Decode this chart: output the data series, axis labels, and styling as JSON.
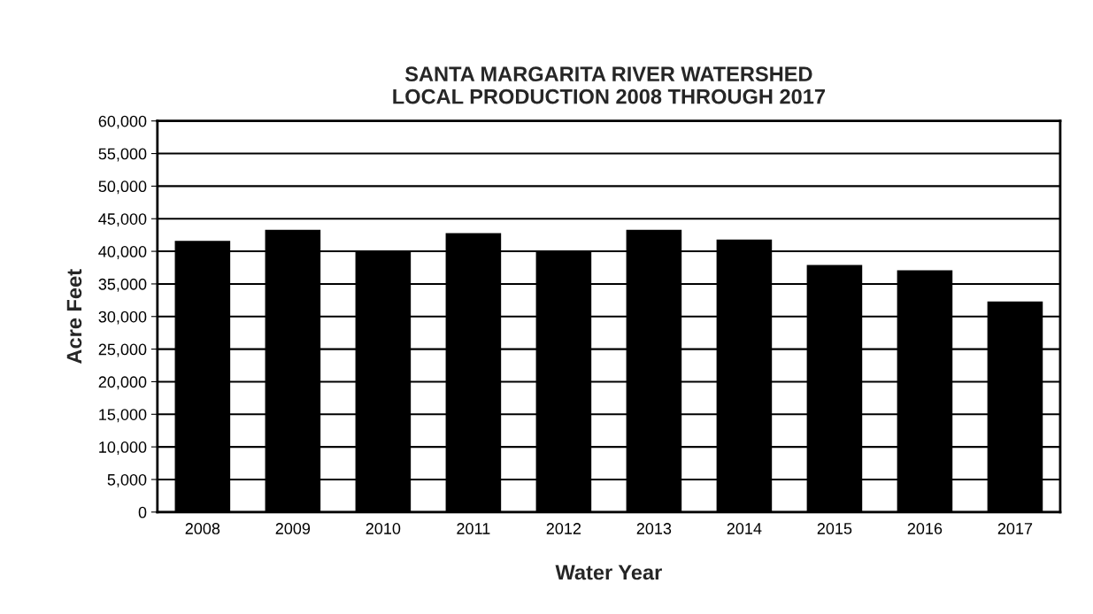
{
  "chart_data": {
    "type": "bar",
    "title": "SANTA MARGARITA RIVER WATERSHED\nLOCAL PRODUCTION 2008 THROUGH 2017",
    "xlabel": "Water Year",
    "ylabel": "Acre Feet",
    "categories": [
      "2008",
      "2009",
      "2010",
      "2011",
      "2012",
      "2013",
      "2014",
      "2015",
      "2016",
      "2017"
    ],
    "values": [
      41500,
      43200,
      40000,
      42700,
      39900,
      43200,
      41700,
      37800,
      37000,
      32200
    ],
    "color": "#000000",
    "ylim": [
      0,
      60000
    ],
    "yticks": [
      {
        "value": 0,
        "label": "0"
      },
      {
        "value": 5000,
        "label": "5,000"
      },
      {
        "value": 10000,
        "label": "10,000"
      },
      {
        "value": 15000,
        "label": "15,000"
      },
      {
        "value": 20000,
        "label": "20,000"
      },
      {
        "value": 25000,
        "label": "25,000"
      },
      {
        "value": 30000,
        "label": "30,000"
      },
      {
        "value": 35000,
        "label": "35,000"
      },
      {
        "value": 40000,
        "label": "40,000"
      },
      {
        "value": 45000,
        "label": "45,000"
      },
      {
        "value": 50000,
        "label": "50,000"
      },
      {
        "value": 55000,
        "label": "55,000"
      },
      {
        "value": 60000,
        "label": "60,000"
      }
    ],
    "grid": "y",
    "legend": false
  }
}
